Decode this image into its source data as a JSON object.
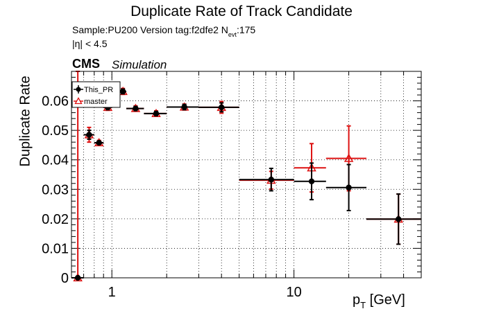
{
  "header": {
    "title": "Duplicate Rate of Track Candidate",
    "sample_line_prefix": "Sample:PU200   Version tag:f2dfe2  N",
    "sample_line_sub": "evt",
    "sample_line_suffix": ":175",
    "eta_cut": "|η| < 4.5",
    "cms_label": "CMS",
    "simulation_label": "Simulation"
  },
  "axes": {
    "xlabel_main": "p",
    "xlabel_sub": "T",
    "xlabel_unit": " [GeV]",
    "ylabel": "Duplicate Rate"
  },
  "colors": {
    "this_pr": "#000000",
    "master": "#dd1111"
  },
  "chart_data": {
    "type": "scatter",
    "xscale": "log",
    "xlim": [
      0.6,
      50
    ],
    "ylim": [
      0,
      0.07
    ],
    "grid": true,
    "legend_position": "top-left",
    "x_ticks": [
      {
        "value": 1,
        "label": "1"
      },
      {
        "value": 10,
        "label": "10"
      }
    ],
    "y_ticks": [
      {
        "value": 0,
        "label": "0"
      },
      {
        "value": 0.01,
        "label": "0.01"
      },
      {
        "value": 0.02,
        "label": "0.02"
      },
      {
        "value": 0.03,
        "label": "0.03"
      },
      {
        "value": 0.04,
        "label": "0.04"
      },
      {
        "value": 0.05,
        "label": "0.05"
      },
      {
        "value": 0.06,
        "label": "0.06"
      }
    ],
    "series": [
      {
        "name": "This_PR",
        "marker": "circle",
        "color": "#000000",
        "points": [
          {
            "x": 0.65,
            "xlo": 0.6,
            "xhi": 0.7,
            "y": 0.0,
            "err": 0.0
          },
          {
            "x": 0.75,
            "xlo": 0.7,
            "xhi": 0.8,
            "y": 0.0485,
            "err": 0.0015
          },
          {
            "x": 0.85,
            "xlo": 0.8,
            "xhi": 0.9,
            "y": 0.0458,
            "err": 0.0005
          },
          {
            "x": 0.95,
            "xlo": 0.9,
            "xhi": 1.0,
            "y": 0.0578,
            "err": 0.0008
          },
          {
            "x": 1.05,
            "xlo": 1.0,
            "xhi": 1.1,
            "y": 0.0604,
            "err": 0.0008
          },
          {
            "x": 1.15,
            "xlo": 1.1,
            "xhi": 1.2,
            "y": 0.0632,
            "err": 0.0008
          },
          {
            "x": 1.35,
            "xlo": 1.2,
            "xhi": 1.5,
            "y": 0.0574,
            "err": 0.0007
          },
          {
            "x": 1.75,
            "xlo": 1.5,
            "xhi": 2.0,
            "y": 0.0557,
            "err": 0.0007
          },
          {
            "x": 2.5,
            "xlo": 2.0,
            "xhi": 3.0,
            "y": 0.0579,
            "err": 0.0009
          },
          {
            "x": 4.0,
            "xlo": 3.0,
            "xhi": 5.0,
            "y": 0.0578,
            "err": 0.0015
          },
          {
            "x": 7.5,
            "xlo": 5.0,
            "xhi": 10.0,
            "y": 0.0333,
            "err": 0.0038
          },
          {
            "x": 12.5,
            "xlo": 10.0,
            "xhi": 15.0,
            "y": 0.0327,
            "err": 0.0062
          },
          {
            "x": 20.0,
            "xlo": 15.0,
            "xhi": 25.0,
            "y": 0.0306,
            "err": 0.0078
          },
          {
            "x": 37.5,
            "xlo": 25.0,
            "xhi": 50.0,
            "y": 0.0199,
            "err": 0.0085
          }
        ]
      },
      {
        "name": "master",
        "marker": "open-triangle",
        "color": "#dd1111",
        "points": [
          {
            "x": 0.65,
            "xlo": 0.6,
            "xhi": 0.7,
            "y": 0.0,
            "err": 0.07
          },
          {
            "x": 0.75,
            "xlo": 0.7,
            "xhi": 0.8,
            "y": 0.0485,
            "err": 0.0025
          },
          {
            "x": 0.85,
            "xlo": 0.8,
            "xhi": 0.9,
            "y": 0.0458,
            "err": 0.0008
          },
          {
            "x": 0.95,
            "xlo": 0.9,
            "xhi": 1.0,
            "y": 0.0578,
            "err": 0.001
          },
          {
            "x": 1.05,
            "xlo": 1.0,
            "xhi": 1.1,
            "y": 0.0604,
            "err": 0.001
          },
          {
            "x": 1.15,
            "xlo": 1.1,
            "xhi": 1.2,
            "y": 0.0632,
            "err": 0.001
          },
          {
            "x": 1.35,
            "xlo": 1.2,
            "xhi": 1.5,
            "y": 0.0574,
            "err": 0.0009
          },
          {
            "x": 1.75,
            "xlo": 1.5,
            "xhi": 2.0,
            "y": 0.0557,
            "err": 0.0009
          },
          {
            "x": 2.5,
            "xlo": 2.0,
            "xhi": 3.0,
            "y": 0.0579,
            "err": 0.001
          },
          {
            "x": 4.0,
            "xlo": 3.0,
            "xhi": 5.0,
            "y": 0.0578,
            "err": 0.002
          },
          {
            "x": 7.5,
            "xlo": 5.0,
            "xhi": 10.0,
            "y": 0.0331,
            "err": 0.003
          },
          {
            "x": 12.5,
            "xlo": 10.0,
            "xhi": 15.0,
            "y": 0.0373,
            "err": 0.0082
          },
          {
            "x": 20.0,
            "xlo": 15.0,
            "xhi": 25.0,
            "y": 0.0405,
            "err": 0.011
          },
          {
            "x": 37.5,
            "xlo": 25.0,
            "xhi": 50.0,
            "y": 0.0199,
            "err": 0.0085
          }
        ]
      }
    ]
  }
}
